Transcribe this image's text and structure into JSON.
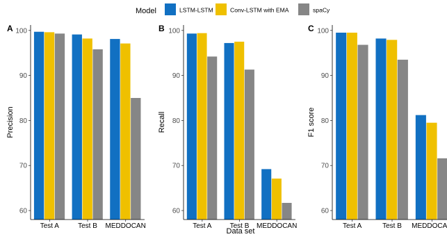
{
  "legend": {
    "title": "Model",
    "entries": [
      {
        "name": "LSTM-LSTM",
        "color": "#1170C2"
      },
      {
        "name": "Conv-LSTM with EMA",
        "color": "#EFC000"
      },
      {
        "name": "spaCy",
        "color": "#868686"
      }
    ],
    "position": "top"
  },
  "shared_xlabel": "Data set",
  "chart_data": [
    {
      "type": "bar",
      "panel_label": "A",
      "ylabel": "Precision",
      "xlabel": "",
      "ylim": [
        58,
        101.2
      ],
      "yticks": [
        60,
        70,
        80,
        90,
        100
      ],
      "grid": false,
      "categories": [
        "Test A",
        "Test B",
        "MEDDOCAN"
      ],
      "series": [
        {
          "name": "LSTM-LSTM",
          "values": [
            99.7,
            99.1,
            98.1
          ]
        },
        {
          "name": "Conv-LSTM with EMA",
          "values": [
            99.6,
            98.2,
            97.1
          ]
        },
        {
          "name": "spaCy",
          "values": [
            99.3,
            95.8,
            85.0
          ]
        }
      ]
    },
    {
      "type": "bar",
      "panel_label": "B",
      "ylabel": "Recall",
      "xlabel": "Data set",
      "ylim": [
        58,
        101.2
      ],
      "yticks": [
        60,
        70,
        80,
        90,
        100
      ],
      "grid": false,
      "categories": [
        "Test A",
        "Test B",
        "MEDDOCAN"
      ],
      "series": [
        {
          "name": "LSTM-LSTM",
          "values": [
            99.3,
            97.2,
            69.2
          ]
        },
        {
          "name": "Conv-LSTM with EMA",
          "values": [
            99.4,
            97.5,
            67.1
          ]
        },
        {
          "name": "spaCy",
          "values": [
            94.2,
            91.3,
            61.7
          ]
        }
      ]
    },
    {
      "type": "bar",
      "panel_label": "C",
      "ylabel": "F1 score",
      "xlabel": "",
      "ylim": [
        58,
        101.2
      ],
      "yticks": [
        60,
        70,
        80,
        90,
        100
      ],
      "grid": false,
      "categories": [
        "Test A",
        "Test B",
        "MEDDOCAN"
      ],
      "series": [
        {
          "name": "LSTM-LSTM",
          "values": [
            99.5,
            98.2,
            81.2
          ]
        },
        {
          "name": "Conv-LSTM with EMA",
          "values": [
            99.5,
            97.9,
            79.5
          ]
        },
        {
          "name": "spaCy",
          "values": [
            96.8,
            93.5,
            71.6
          ]
        }
      ]
    }
  ]
}
